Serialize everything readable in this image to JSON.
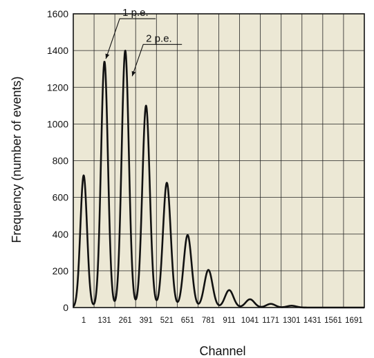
{
  "chart_data": {
    "type": "line",
    "xlabel": "Channel",
    "ylabel": "Frequency (number of events)",
    "ylim": [
      0,
      1600
    ],
    "yticks": [
      0,
      200,
      400,
      600,
      800,
      1000,
      1200,
      1400,
      1600
    ],
    "xticks": [
      1,
      131,
      261,
      391,
      521,
      651,
      781,
      911,
      1041,
      1171,
      1301,
      1431,
      1561,
      1691
    ],
    "grid": true,
    "background_color": "#ece8d5",
    "line_color": "#111111",
    "peaks": [
      {
        "channel": 1,
        "frequency": 720
      },
      {
        "channel": 131,
        "frequency": 1340
      },
      {
        "channel": 261,
        "frequency": 1400
      },
      {
        "channel": 391,
        "frequency": 1100
      },
      {
        "channel": 521,
        "frequency": 680
      },
      {
        "channel": 651,
        "frequency": 395
      },
      {
        "channel": 781,
        "frequency": 205
      },
      {
        "channel": 911,
        "frequency": 95
      },
      {
        "channel": 1041,
        "frequency": 45
      },
      {
        "channel": 1171,
        "frequency": 20
      },
      {
        "channel": 1301,
        "frequency": 10
      },
      {
        "channel": 1431,
        "frequency": 0
      },
      {
        "channel": 1561,
        "frequency": 0
      },
      {
        "channel": 1691,
        "frequency": 0
      }
    ],
    "annotations": [
      {
        "text": "1 p.e.",
        "channel": 131,
        "frequency": 1340
      },
      {
        "text": "2 p.e.",
        "channel": 261,
        "frequency": 1260
      }
    ]
  }
}
